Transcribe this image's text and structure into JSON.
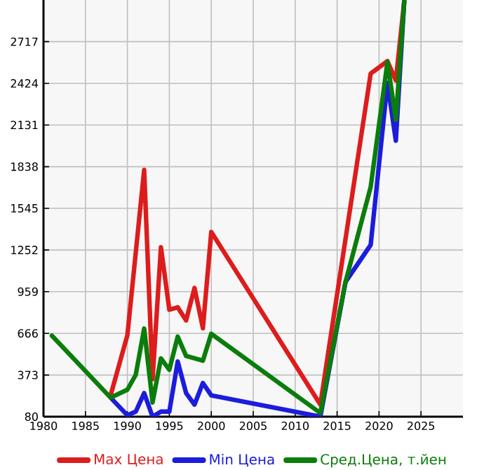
{
  "chart_data": {
    "type": "line",
    "xlim": [
      1980,
      2030
    ],
    "xticks": [
      1980,
      1985,
      1990,
      1995,
      2000,
      2005,
      2010,
      2015,
      2020,
      2025
    ],
    "ylim": [
      80,
      3010
    ],
    "yticks": [
      80,
      373,
      666,
      959,
      1252,
      1545,
      1838,
      2131,
      2424,
      2717
    ],
    "grid": true,
    "legend": "bottom",
    "marker": "none",
    "line_style": "solid",
    "series": [
      {
        "name": "Max Цена",
        "color": "#dd1c1c",
        "x": [
          1988,
          1990,
          1992,
          1993,
          1994,
          1995,
          1996,
          1997,
          1998,
          1999,
          2000,
          2013,
          2019,
          2021,
          2022,
          2023
        ],
        "values": [
          230,
          653,
          1815,
          344,
          1272,
          832,
          849,
          757,
          985,
          702,
          1379,
          165,
          2493,
          2580,
          2444,
          3000
        ]
      },
      {
        "name": "Min Цена",
        "color": "#1c1cdd",
        "x": [
          1988,
          1990,
          1991,
          1992,
          1993,
          1994,
          1995,
          1996,
          1997,
          1998,
          1999,
          2000,
          2013,
          2016,
          2019,
          2021,
          2022,
          2023
        ],
        "values": [
          214,
          90,
          116,
          246,
          80,
          116,
          116,
          468,
          246,
          165,
          317,
          230,
          80,
          1027,
          1288,
          2427,
          2021,
          3000
        ]
      },
      {
        "name": "Сред.Цена, т.йен",
        "color": "#0a7d0a",
        "x": [
          1981,
          1988,
          1990,
          1991,
          1992,
          1993,
          1994,
          1995,
          1996,
          1997,
          1999,
          2000,
          2013,
          2016,
          2019,
          2021,
          2022,
          2023
        ],
        "values": [
          650,
          214,
          270,
          375,
          700,
          180,
          490,
          410,
          643,
          507,
          474,
          663,
          106,
          1027,
          1695,
          2574,
          2167,
          3000
        ]
      }
    ]
  }
}
